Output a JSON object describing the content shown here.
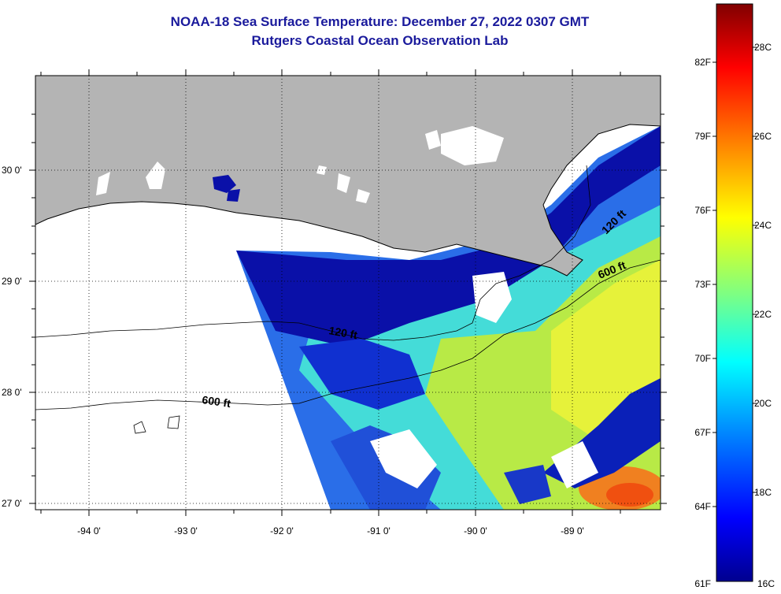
{
  "header": {
    "title": "NOAA-18 Sea Surface Temperature:  December 27, 2022 0307 GMT",
    "subtitle": "Rutgers Coastal Ocean Observation Lab"
  },
  "map": {
    "lat_labels": [
      "30 0'",
      "29 0'",
      "28 0'",
      "27 0'"
    ],
    "lon_labels": [
      "-94 0'",
      "-93 0'",
      "-92 0'",
      "-91 0'",
      "-90 0'",
      "-89 0'"
    ],
    "contour_labels": [
      {
        "text": "600 ft"
      },
      {
        "text": "120 ft"
      },
      {
        "text": "600 ft"
      },
      {
        "text": "120 ft"
      }
    ]
  },
  "colorbar": {
    "fahrenheit_labels": [
      "82F",
      "79F",
      "76F",
      "73F",
      "70F",
      "67F",
      "64F",
      "61F"
    ],
    "celsius_labels": [
      "28C",
      "26C",
      "24C",
      "22C",
      "20C",
      "18C",
      "16C"
    ],
    "range_c": [
      16,
      29.5
    ],
    "colors": [
      "#00008f",
      "#0000ff",
      "#0080ff",
      "#00ffff",
      "#80ff80",
      "#ffff00",
      "#ff8000",
      "#ff0000",
      "#800000"
    ]
  },
  "colors": {
    "land": "#b4b4b4",
    "no_data": "#ffffff",
    "title": "#1a1a9c"
  }
}
